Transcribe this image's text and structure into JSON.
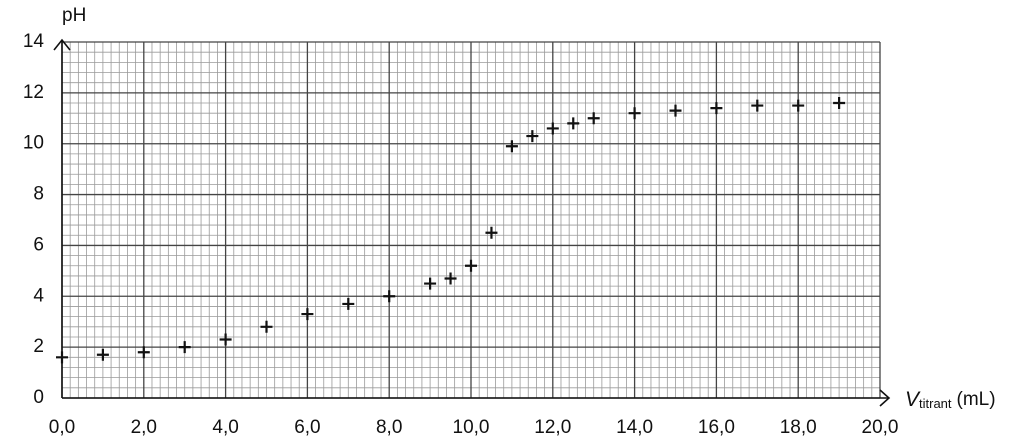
{
  "chart_data": {
    "type": "scatter",
    "y_label": "pH",
    "x_label": {
      "symbol": "V",
      "subscript": "titrant",
      "unit": "(mL)"
    },
    "x": [
      0,
      1,
      2,
      3,
      4,
      5,
      6,
      7,
      8,
      9,
      9.5,
      10,
      10.5,
      11,
      11.5,
      12,
      12.5,
      13,
      14,
      15,
      16,
      17,
      18,
      19
    ],
    "values": [
      1.6,
      1.7,
      1.8,
      2.0,
      2.3,
      2.8,
      3.3,
      3.7,
      4.0,
      4.5,
      4.7,
      5.2,
      6.5,
      9.9,
      10.3,
      10.6,
      10.8,
      11.0,
      11.2,
      11.3,
      11.4,
      11.5,
      11.5,
      11.6
    ],
    "color": "#111111",
    "xlim": [
      0,
      20
    ],
    "ylim": [
      0,
      14
    ],
    "xticks": [
      {
        "value": 0,
        "label": "0,0"
      },
      {
        "value": 2,
        "label": "2,0"
      },
      {
        "value": 4,
        "label": "4,0"
      },
      {
        "value": 6,
        "label": "6,0"
      },
      {
        "value": 8,
        "label": "8,0"
      },
      {
        "value": 10,
        "label": "10,0"
      },
      {
        "value": 12,
        "label": "12,0"
      },
      {
        "value": 14,
        "label": "14,0"
      },
      {
        "value": 16,
        "label": "16,0"
      },
      {
        "value": 18,
        "label": "18,0"
      },
      {
        "value": 20,
        "label": "20,0"
      }
    ],
    "yticks": [
      0,
      2,
      4,
      6,
      8,
      10,
      12,
      14
    ],
    "grid": true
  }
}
